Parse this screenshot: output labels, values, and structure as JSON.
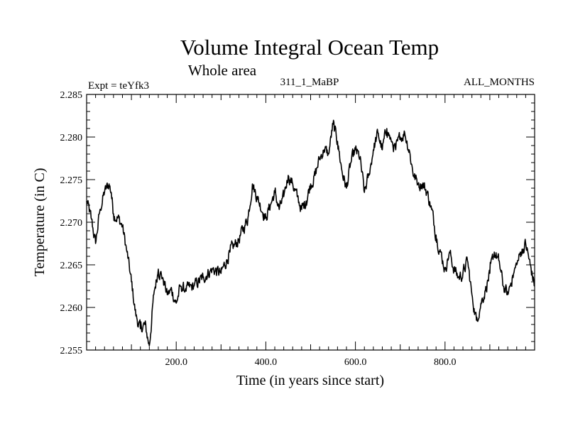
{
  "chart_data": {
    "type": "line",
    "title": "Volume Integral Ocean Temp",
    "subtitle": "Whole area",
    "left_label": "Expt = teYfk3",
    "center_label": "311_1_MaBP",
    "right_label": "ALL_MONTHS",
    "xlabel": "Time (in years since start)",
    "ylabel": "Temperature (in C)",
    "xlim": [
      0,
      1000
    ],
    "ylim": [
      2.255,
      2.285
    ],
    "x_ticks": [
      200,
      400,
      600,
      800
    ],
    "x_tick_labels": [
      "200.0",
      "400.0",
      "600.0",
      "800.0"
    ],
    "y_ticks": [
      2.255,
      2.26,
      2.265,
      2.27,
      2.275,
      2.28,
      2.285
    ],
    "y_tick_labels": [
      "2.255",
      "2.260",
      "2.265",
      "2.270",
      "2.275",
      "2.280",
      "2.285"
    ],
    "grid": false,
    "series": [
      {
        "name": "Volume integral ocean temperature",
        "color": "#000000",
        "x": [
          0,
          10,
          20,
          30,
          40,
          50,
          55,
          60,
          70,
          80,
          90,
          100,
          110,
          120,
          130,
          140,
          150,
          160,
          170,
          180,
          190,
          200,
          210,
          220,
          240,
          260,
          280,
          300,
          320,
          340,
          360,
          370,
          380,
          400,
          410,
          420,
          430,
          440,
          450,
          460,
          470,
          480,
          490,
          500,
          510,
          520,
          530,
          540,
          550,
          560,
          570,
          580,
          590,
          600,
          610,
          620,
          630,
          640,
          650,
          660,
          670,
          680,
          690,
          700,
          710,
          720,
          730,
          740,
          750,
          760,
          770,
          780,
          790,
          800,
          810,
          820,
          830,
          840,
          850,
          860,
          870,
          880,
          890,
          900,
          910,
          920,
          930,
          940,
          950,
          960,
          970,
          980,
          990,
          1000
        ],
        "y": [
          2.2725,
          2.2705,
          2.2675,
          2.2715,
          2.2735,
          2.2745,
          2.2735,
          2.271,
          2.2705,
          2.2695,
          2.2665,
          2.263,
          2.259,
          2.2575,
          2.258,
          2.2555,
          2.2615,
          2.2645,
          2.2635,
          2.2615,
          2.262,
          2.2605,
          2.2625,
          2.262,
          2.2625,
          2.2635,
          2.2645,
          2.264,
          2.2665,
          2.268,
          2.2705,
          2.2745,
          2.273,
          2.2705,
          2.272,
          2.2735,
          2.2715,
          2.273,
          2.2755,
          2.2745,
          2.273,
          2.2715,
          2.2725,
          2.2745,
          2.2755,
          2.2775,
          2.2785,
          2.278,
          2.2815,
          2.2795,
          2.276,
          2.274,
          2.277,
          2.2785,
          2.2775,
          2.2735,
          2.2755,
          2.2785,
          2.2805,
          2.2785,
          2.281,
          2.2795,
          2.2785,
          2.28,
          2.2805,
          2.2785,
          2.2755,
          2.2745,
          2.2745,
          2.2735,
          2.2715,
          2.2685,
          2.2665,
          2.2645,
          2.2665,
          2.2645,
          2.2635,
          2.264,
          2.2655,
          2.2615,
          2.2585,
          2.2605,
          2.262,
          2.264,
          2.2665,
          2.2655,
          2.2625,
          2.2615,
          2.2635,
          2.265,
          2.2665,
          2.2675,
          2.265,
          2.2625
        ]
      }
    ]
  }
}
